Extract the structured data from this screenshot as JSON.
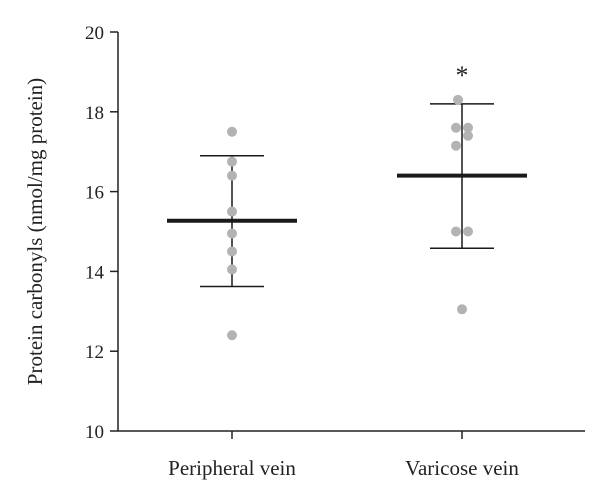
{
  "chart_data": {
    "type": "scatter",
    "ylabel": "Protein carbonyls (nmol/mg protein)",
    "xlabel": "",
    "ylim": [
      10,
      20
    ],
    "yticks": [
      10,
      12,
      14,
      16,
      18,
      20
    ],
    "grid": false,
    "categories": [
      "Peripheral vein",
      "Varicose vein"
    ],
    "groups": [
      {
        "category": "Peripheral vein",
        "points": [
          17.5,
          16.75,
          16.4,
          15.5,
          14.95,
          14.5,
          14.05,
          12.4
        ],
        "mean": 15.27,
        "sd_upper": 16.9,
        "sd_lower": 13.62,
        "significance": ""
      },
      {
        "category": "Varicose vein",
        "points": [
          18.3,
          17.6,
          17.6,
          17.4,
          17.15,
          15.0,
          15.0,
          13.05
        ],
        "mean": 16.4,
        "sd_upper": 18.2,
        "sd_lower": 14.58,
        "significance": "*"
      }
    ],
    "colors": {
      "points": "#b3b3b3",
      "bars": "#1a1a1a",
      "axis": "#222222"
    }
  }
}
